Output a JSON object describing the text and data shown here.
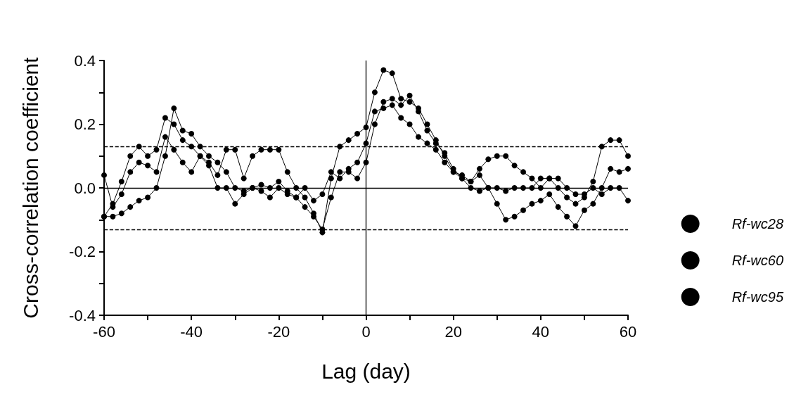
{
  "chart_data": {
    "type": "line",
    "xlabel": "Lag (day)",
    "ylabel": "Cross-correlation coefficient",
    "x": [
      -60,
      -58,
      -56,
      -54,
      -52,
      -50,
      -48,
      -46,
      -44,
      -42,
      -40,
      -38,
      -36,
      -34,
      -32,
      -30,
      -28,
      -26,
      -24,
      -22,
      -20,
      -18,
      -16,
      -14,
      -12,
      -10,
      -8,
      -6,
      -4,
      -2,
      0,
      2,
      4,
      6,
      8,
      10,
      12,
      14,
      16,
      18,
      20,
      22,
      24,
      26,
      28,
      30,
      32,
      34,
      36,
      38,
      40,
      42,
      44,
      46,
      48,
      50,
      52,
      54,
      56,
      58,
      60
    ],
    "xlim": [
      -60,
      60
    ],
    "xticks": [
      -60,
      {
        "value": -50,
        "label": null
      },
      -40,
      {
        "value": -30,
        "label": null
      },
      -20,
      {
        "value": -10,
        "label": null
      },
      0,
      {
        "value": 10,
        "label": null
      },
      20,
      {
        "value": 30,
        "label": null
      },
      40,
      {
        "value": 50,
        "label": null
      },
      60
    ],
    "ylim": [
      -0.4,
      0.4
    ],
    "yticks": [
      -0.4,
      {
        "value": -0.3,
        "label": null
      },
      -0.2,
      {
        "value": -0.1,
        "label": null
      },
      {
        "value": 0,
        "label": "0.0"
      },
      {
        "value": 0.1,
        "label": null
      },
      0.2,
      {
        "value": 0.3,
        "label": null
      },
      0.4
    ],
    "series": [
      {
        "name": "Rf-wc28",
        "color": "#000000",
        "values": [
          -0.09,
          -0.05,
          0.02,
          0.1,
          0.13,
          0.1,
          0.12,
          0.22,
          0.2,
          0.15,
          0.13,
          0.1,
          0.08,
          0.04,
          0.12,
          0.12,
          0.03,
          0.1,
          0.12,
          0.12,
          0.12,
          0.05,
          0.0,
          -0.03,
          -0.08,
          -0.14,
          0.03,
          0.13,
          0.15,
          0.17,
          0.19,
          0.3,
          0.37,
          0.36,
          0.28,
          0.27,
          0.25,
          0.2,
          0.15,
          0.1,
          0.05,
          0.04,
          0.02,
          0.06,
          0.09,
          0.1,
          0.1,
          0.07,
          0.05,
          0.03,
          0.0,
          0.03,
          0.0,
          -0.03,
          -0.05,
          -0.03,
          0.02,
          0.13,
          0.15,
          0.15,
          0.1
        ]
      },
      {
        "name": "Rf-wc60",
        "color": "#000000",
        "values": [
          -0.09,
          -0.09,
          -0.08,
          -0.06,
          -0.04,
          -0.03,
          0.0,
          0.1,
          0.25,
          0.18,
          0.17,
          0.13,
          0.1,
          0.08,
          0.05,
          0.0,
          -0.01,
          0.0,
          0.01,
          0.0,
          0.02,
          -0.01,
          -0.03,
          -0.06,
          -0.09,
          -0.13,
          -0.03,
          0.05,
          0.05,
          0.03,
          0.08,
          0.2,
          0.27,
          0.28,
          0.26,
          0.29,
          0.24,
          0.18,
          0.14,
          0.11,
          0.06,
          0.03,
          0.0,
          -0.01,
          0.0,
          -0.05,
          -0.1,
          -0.09,
          -0.07,
          -0.05,
          -0.04,
          -0.02,
          -0.06,
          -0.09,
          -0.12,
          -0.07,
          -0.05,
          0.0,
          0.06,
          0.05,
          0.06
        ]
      },
      {
        "name": "Rf-wc95",
        "color": "#000000",
        "values": [
          0.04,
          -0.06,
          -0.02,
          0.05,
          0.08,
          0.07,
          0.05,
          0.16,
          0.12,
          0.08,
          0.05,
          0.1,
          0.07,
          0.0,
          0.0,
          -0.05,
          -0.02,
          0.0,
          -0.01,
          -0.03,
          0.0,
          -0.02,
          -0.03,
          0.0,
          -0.04,
          -0.02,
          0.05,
          0.03,
          0.06,
          0.08,
          0.14,
          0.24,
          0.25,
          0.26,
          0.22,
          0.2,
          0.16,
          0.14,
          0.12,
          0.08,
          0.05,
          0.03,
          0.02,
          0.04,
          0.0,
          0.0,
          -0.01,
          0.0,
          0.0,
          0.0,
          0.03,
          0.03,
          0.03,
          0.0,
          -0.02,
          -0.02,
          0.0,
          -0.02,
          0.0,
          0.0,
          -0.04
        ]
      }
    ],
    "ref_lines": [
      {
        "axis": "y",
        "value": 0,
        "label": null,
        "color": "#000000",
        "line_style": "solid"
      },
      {
        "axis": "x",
        "value": 0,
        "label": null,
        "color": "#000000",
        "line_style": "solid"
      },
      {
        "axis": "y",
        "value": 0.13,
        "label": null,
        "color": "#000000",
        "line_style": "dashed"
      },
      {
        "axis": "y",
        "value": -0.13,
        "label": null,
        "color": "#000000",
        "line_style": "dashed"
      }
    ],
    "marker": "circle",
    "line_style": "solid",
    "grid": false,
    "legend": "right"
  }
}
